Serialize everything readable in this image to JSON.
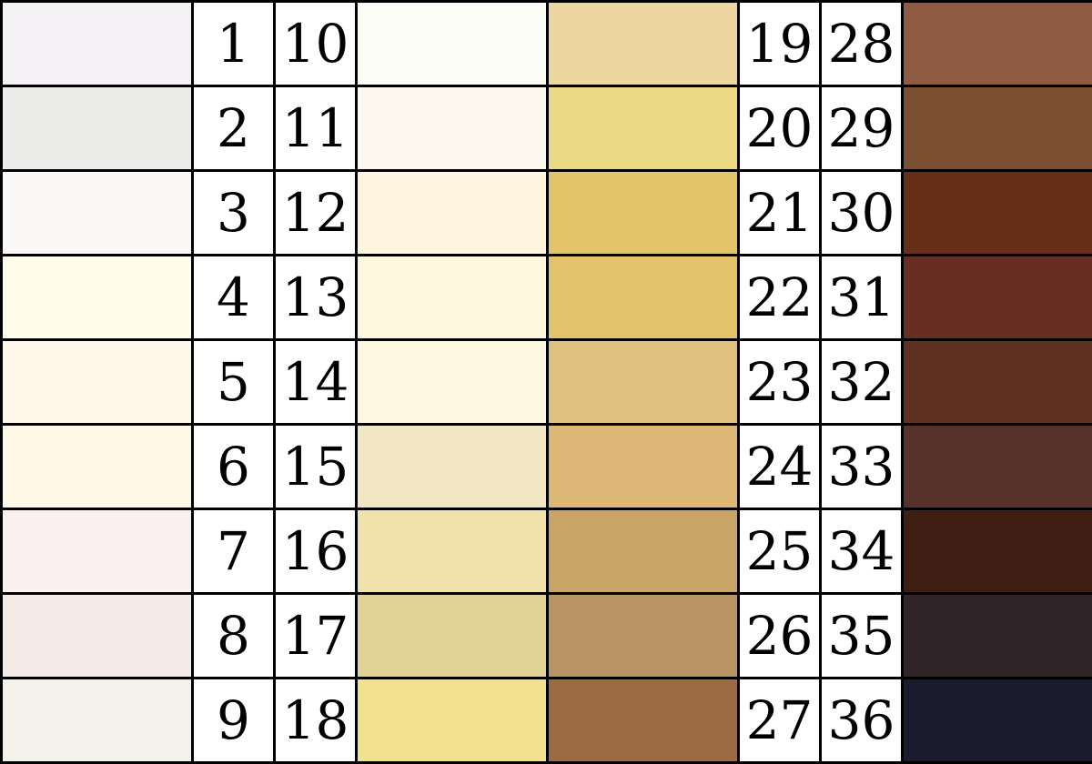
{
  "columns": [
    {
      "labels": [
        "1",
        "2",
        "3",
        "4",
        "5",
        "6",
        "7",
        "8",
        "9"
      ],
      "colors": [
        "#f4f2f5",
        "#ececea",
        "#faf9f7",
        "#fffce9",
        "#fff7e9",
        "#fff8e7",
        "#faf0ef",
        "#f4ebe6",
        "#f3f1ea"
      ]
    },
    {
      "labels": [
        "10",
        "11",
        "12",
        "13",
        "14",
        "15",
        "16",
        "17",
        "18"
      ],
      "colors": [
        "#fafcf5",
        "#fcf8ee",
        "#fff5df",
        "#fff8df",
        "#fff8e0",
        "#f1e7c4",
        "#f0e2aa",
        "#dfd293",
        "#f2e190"
      ]
    },
    {
      "labels": [
        "19",
        "20",
        "21",
        "22",
        "23",
        "24",
        "25",
        "26",
        "27"
      ],
      "colors": [
        "#ecd59f",
        "#ebd984",
        "#e3c46a",
        "#e2c26a",
        "#dfc07d",
        "#ddb775",
        "#c8a566",
        "#b99565",
        "#9c6b44"
      ]
    },
    {
      "labels": [
        "28",
        "29",
        "30",
        "31",
        "32",
        "33",
        "34",
        "35",
        "36"
      ],
      "colors": [
        "#8e5a42",
        "#7a4f32",
        "#652f17",
        "#662f21",
        "#5e3022",
        "#56322a",
        "#3f1f14",
        "#302428",
        "#1a1b2c"
      ]
    }
  ]
}
